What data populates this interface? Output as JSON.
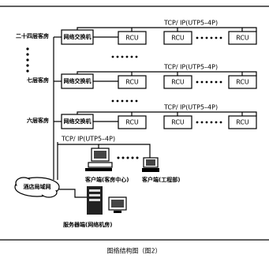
{
  "caption": "图络结构图（图2）",
  "floors": [
    {
      "label": "二十四层客房",
      "switch": "网络交换机",
      "link": "TCP/ IP(UTP5–4P)",
      "rcus": [
        "RCU",
        "RCU",
        "RCU"
      ]
    },
    {
      "label": "七层客房",
      "switch": "网络交换机",
      "link": "TCP/ IP(UTP5–4P)",
      "rcus": [
        "RCU",
        "RCU",
        "RCU"
      ]
    },
    {
      "label": "六层客房",
      "switch": "网络交换机",
      "link": "TCP/ IP(UTP5–4P)",
      "rcus": [
        "RCU",
        "RCU",
        "RCU"
      ]
    }
  ],
  "client_link": "TCP/ IP(UTP5–4P)",
  "clients": [
    {
      "label": "客户端(客房中心)"
    },
    {
      "label": "客户端(工程部)"
    }
  ],
  "lan": "酒店局域网",
  "server": "服务器端(网络机房)"
}
